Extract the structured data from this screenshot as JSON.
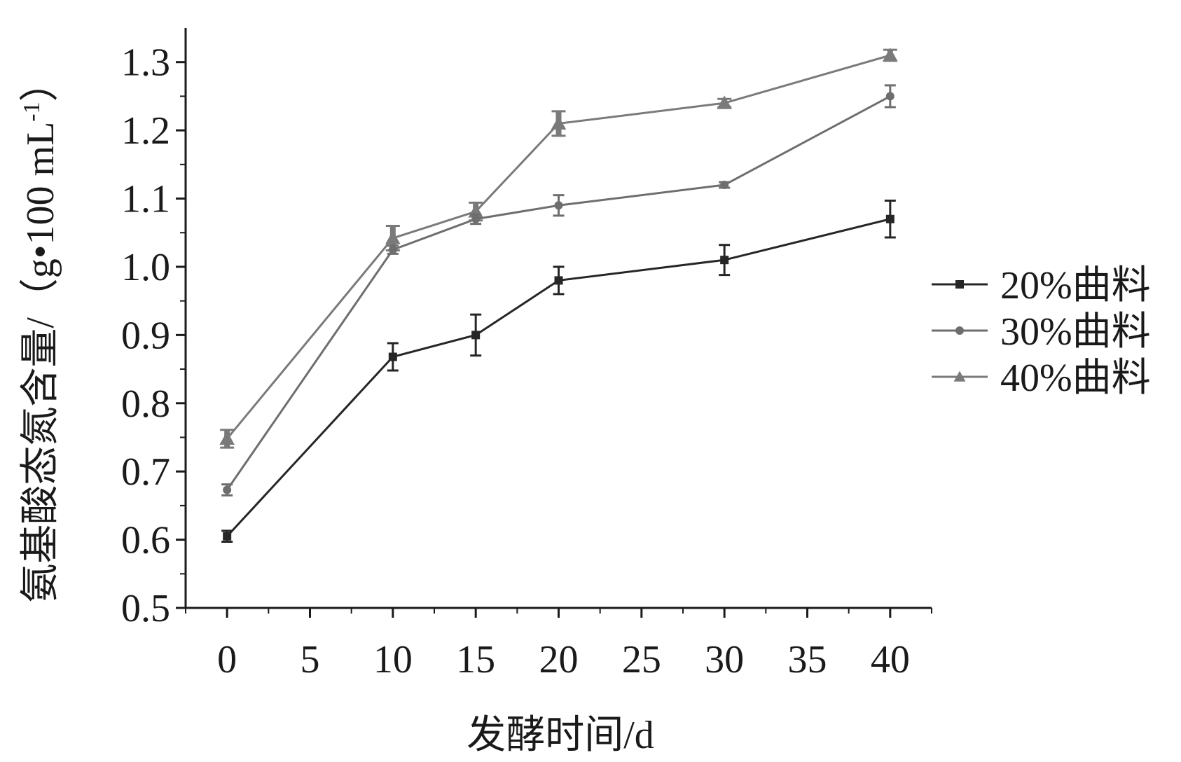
{
  "chart_data": {
    "type": "line",
    "xlabel": "发酵时间/d",
    "ylabel": "氨基酸态氮含量/（g•100 mL",
    "ylabel_superscript": "-1",
    "ylabel_close": "）",
    "xlim": [
      -2.5,
      42.5
    ],
    "ylim": [
      0.5,
      1.35
    ],
    "x_ticks": [
      0,
      5,
      10,
      15,
      20,
      25,
      30,
      35,
      40
    ],
    "x_tick_labels": [
      "0",
      "5",
      "10",
      "15",
      "20",
      "25",
      "30",
      "35",
      "40"
    ],
    "y_ticks": [
      0.5,
      0.6,
      0.7,
      0.8,
      0.9,
      1.0,
      1.1,
      1.2,
      1.3
    ],
    "y_tick_labels": [
      "0.5",
      "0.6",
      "0.7",
      "0.8",
      "0.9",
      "1.0",
      "1.1",
      "1.2",
      "1.3"
    ],
    "legend_position": "right",
    "x": [
      0,
      10,
      15,
      20,
      30,
      40
    ],
    "series": [
      {
        "name": "20%曲料",
        "marker": "square",
        "color": "#262626",
        "values": [
          0.605,
          0.868,
          0.9,
          0.98,
          1.01,
          1.07
        ],
        "errors": [
          0.008,
          0.02,
          0.03,
          0.02,
          0.022,
          0.027
        ]
      },
      {
        "name": "30%曲料",
        "marker": "circle",
        "color": "#6e6e6e",
        "values": [
          0.673,
          1.025,
          1.07,
          1.09,
          1.12,
          1.25
        ],
        "errors": [
          0.008,
          0.006,
          0.007,
          0.015,
          0.004,
          0.016
        ]
      },
      {
        "name": "40%曲料",
        "marker": "triangle",
        "color": "#7a7a7a",
        "values": [
          0.748,
          1.042,
          1.081,
          1.21,
          1.24,
          1.31
        ],
        "errors": [
          0.013,
          0.018,
          0.013,
          0.018,
          0.006,
          0.008
        ]
      }
    ]
  }
}
